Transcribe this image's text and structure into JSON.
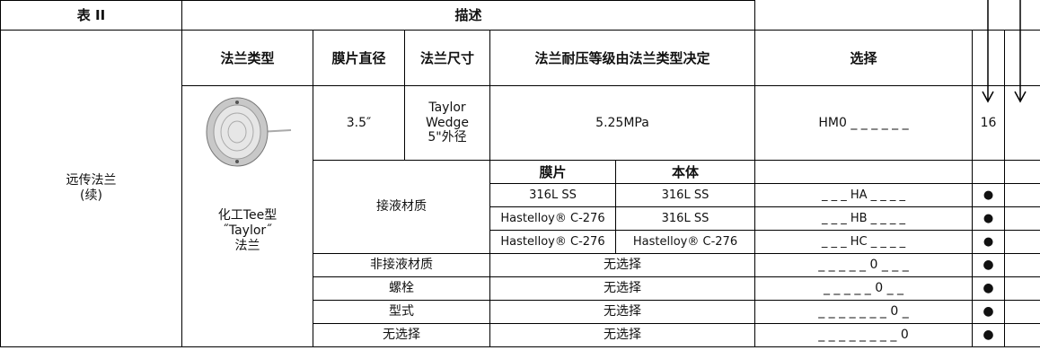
{
  "header": {
    "table_label": "表 II",
    "description": "描述"
  },
  "columns": {
    "flange_type": "法兰类型",
    "diaphragm_diameter": "膜片直径",
    "flange_size": "法兰尺寸",
    "pressure_rating": "法兰耐压等级由法兰类型决定",
    "selection": "选择"
  },
  "group": [
    "远传法兰",
    "(续)"
  ],
  "flange_type": [
    "化工Tee型",
    "˝Taylor˝",
    "法兰"
  ],
  "spec_row": {
    "diameter": "3.5″",
    "size": [
      "Taylor",
      "Wedge",
      "5\"外径"
    ],
    "pressure": "5.25MPa",
    "code": "HM0 _ _ _ _ _ _",
    "count": "16"
  },
  "wetted": {
    "label": "接液材质",
    "headers": [
      "膜片",
      "本体"
    ],
    "rows": [
      [
        "316L SS",
        "316L SS",
        "_ _ _ HA _ _ _ _",
        "●"
      ],
      [
        "Hastelloy® C-276",
        "316L SS",
        "_ _ _ HB _ _ _ _",
        "●"
      ],
      [
        "Hastelloy® C-276",
        "Hastelloy® C-276",
        "_ _ _ HC _ _ _ _",
        "●"
      ]
    ]
  },
  "options": [
    [
      "非接液材质",
      "无选择",
      "_ _ _ _ _ 0 _ _ _",
      "●"
    ],
    [
      "螺栓",
      "无选择",
      "_ _ _ _ _ 0 _ _",
      "●"
    ],
    [
      "型式",
      "无选择",
      "_ _ _ _ _ _ _ 0 _",
      "●"
    ],
    [
      "无选择",
      "无选择",
      "_ _ _ _ _ _ _ _ 0",
      "●"
    ]
  ]
}
